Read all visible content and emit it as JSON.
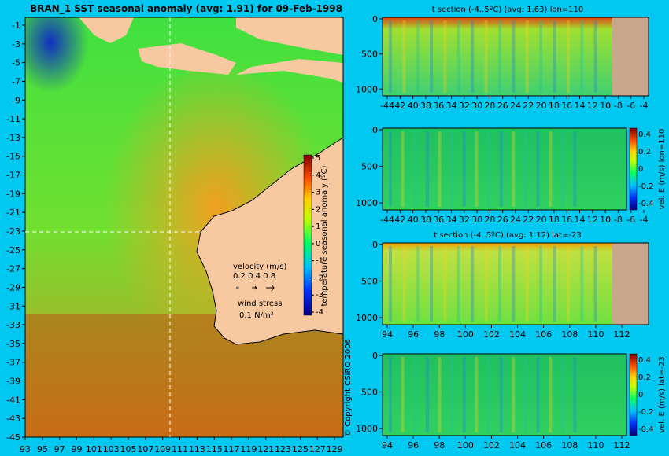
{
  "map": {
    "title": "BRAN_1 SST seasonal anomaly (avg: 1.91) for 09-Feb-1998",
    "lon_ticks": [
      "93",
      "95",
      "97",
      "99",
      "101",
      "103",
      "105",
      "107",
      "109",
      "111",
      "113",
      "115",
      "117",
      "119",
      "121",
      "123",
      "125",
      "127",
      "129"
    ],
    "lat_ticks": [
      "-1",
      "-3",
      "-5",
      "-7",
      "-9",
      "-11",
      "-13",
      "-15",
      "-17",
      "-19",
      "-21",
      "-23",
      "-25",
      "-27",
      "-29",
      "-31",
      "-33",
      "-35",
      "-37",
      "-39",
      "-41",
      "-43",
      "-45"
    ],
    "colorbar_label": "temperature seasonal anomaly (ºC)",
    "colorbar_ticks": [
      "5",
      "4",
      "3",
      "2",
      "1",
      "0",
      "-1",
      "-2",
      "-3",
      "-4"
    ],
    "velocity_label": "velocity (m/s)",
    "velocity_scale": "0.2 0.4 0.8",
    "wind_label": "wind stress",
    "wind_scale": "0.1 N/m²",
    "copyright": "© Copyright CSIRO 2006"
  },
  "panels": [
    {
      "title": "t section (-4..5ºC) (avg: 1.63) lon=110",
      "x_ticks": [
        "-44",
        "42",
        "40",
        "38",
        "36",
        "34",
        "32",
        "30",
        "28",
        "26",
        "24",
        "22",
        "20",
        "18",
        "16",
        "14",
        "12",
        "10",
        "-8",
        "-6",
        "-4"
      ],
      "y_ticks": [
        "0",
        "500",
        "1000"
      ],
      "colorbar_label": "",
      "colorbar_ticks": []
    },
    {
      "title": "",
      "x_ticks": [
        "-44",
        "42",
        "40",
        "38",
        "36",
        "34",
        "32",
        "30",
        "28",
        "26",
        "24",
        "22",
        "20",
        "18",
        "16",
        "14",
        "12",
        "10",
        "-8",
        "-6",
        "-4"
      ],
      "y_ticks": [
        "0",
        "500",
        "1000"
      ],
      "colorbar_label": "vel. E (m/s) lon=110",
      "colorbar_ticks": [
        "0.4",
        "0.2",
        "0",
        "-0.2",
        "-0.4"
      ]
    },
    {
      "title": "t section (-4..5ºC) (avg: 1.12) lat=-23",
      "x_ticks": [
        "94",
        "96",
        "98",
        "100",
        "102",
        "104",
        "106",
        "108",
        "110",
        "112"
      ],
      "y_ticks": [
        "0",
        "500",
        "1000"
      ],
      "colorbar_label": "",
      "colorbar_ticks": []
    },
    {
      "title": "",
      "x_ticks": [
        "94",
        "96",
        "98",
        "100",
        "102",
        "104",
        "106",
        "108",
        "110",
        "112"
      ],
      "y_ticks": [
        "0",
        "500",
        "1000"
      ],
      "colorbar_label": "vel. E (m/s) lat=-23",
      "colorbar_ticks": [
        "0.4",
        "0.2",
        "0",
        "-0.2",
        "-0.4"
      ]
    }
  ],
  "colors": {
    "background": "#00c8f0",
    "land": "#f8c8a0",
    "seafloor": "#c8a88c"
  },
  "chart_data": [
    {
      "type": "heatmap",
      "title": "BRAN_1 SST seasonal anomaly (avg: 1.91) for 09-Feb-1998",
      "xlim": [
        93,
        130
      ],
      "ylim": [
        -45,
        0
      ],
      "colorbar_range": [
        -4,
        5
      ]
    },
    {
      "type": "heatmap",
      "title": "t section (-4..5ºC) (avg: 1.63) lon=110",
      "xlim": [
        -45,
        -3
      ],
      "ylim": [
        1050,
        0
      ],
      "colorbar_range": [
        -4,
        5
      ]
    },
    {
      "type": "heatmap",
      "colorbar_label": "vel. E (m/s) lon=110",
      "xlim": [
        -45,
        -3
      ],
      "ylim": [
        1050,
        0
      ],
      "colorbar_range": [
        -0.4,
        0.4
      ]
    },
    {
      "type": "heatmap",
      "title": "t section (-4..5ºC) (avg: 1.12) lat=-23",
      "xlim": [
        93,
        114
      ],
      "ylim": [
        1050,
        0
      ],
      "colorbar_range": [
        -4,
        5
      ]
    },
    {
      "type": "heatmap",
      "colorbar_label": "vel. E (m/s) lat=-23",
      "xlim": [
        93,
        114
      ],
      "ylim": [
        1050,
        0
      ],
      "colorbar_range": [
        -0.4,
        0.4
      ]
    }
  ]
}
